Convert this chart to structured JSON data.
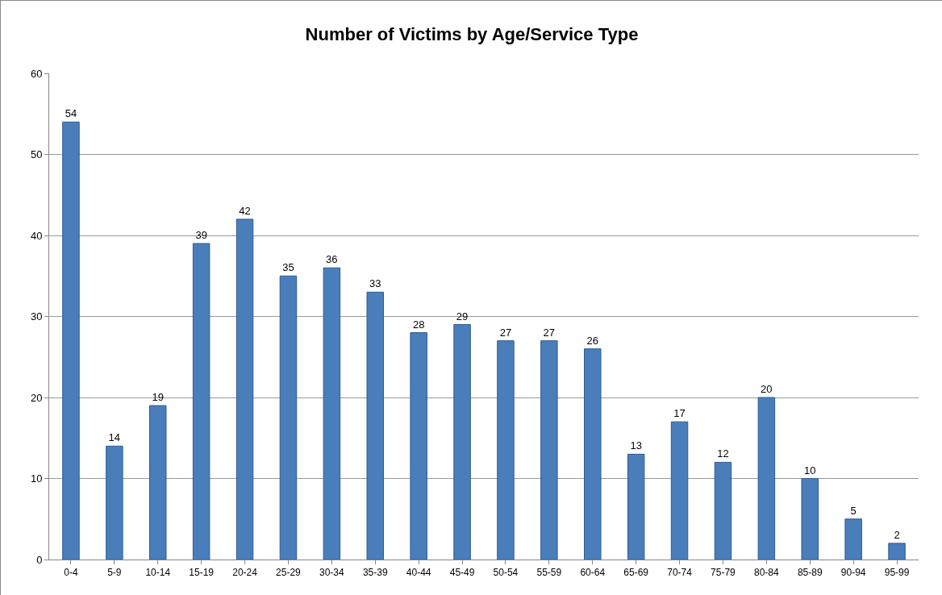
{
  "chart_data": {
    "type": "bar",
    "title": "Number of Victims by Age/Service Type",
    "categories": [
      "0-4",
      "5-9",
      "10-14",
      "15-19",
      "20-24",
      "25-29",
      "30-34",
      "35-39",
      "40-44",
      "45-49",
      "50-54",
      "55-59",
      "60-64",
      "65-69",
      "70-74",
      "75-79",
      "80-84",
      "85-89",
      "90-94",
      "95-99"
    ],
    "values": [
      54,
      14,
      19,
      39,
      42,
      35,
      36,
      33,
      28,
      29,
      27,
      27,
      26,
      13,
      17,
      12,
      20,
      10,
      5,
      2
    ],
    "color": "#4a7ebb",
    "ylim": [
      0,
      60
    ],
    "yticks": [
      0,
      10,
      20,
      30,
      40,
      50,
      60
    ],
    "grid": "y",
    "data_labels": true
  }
}
